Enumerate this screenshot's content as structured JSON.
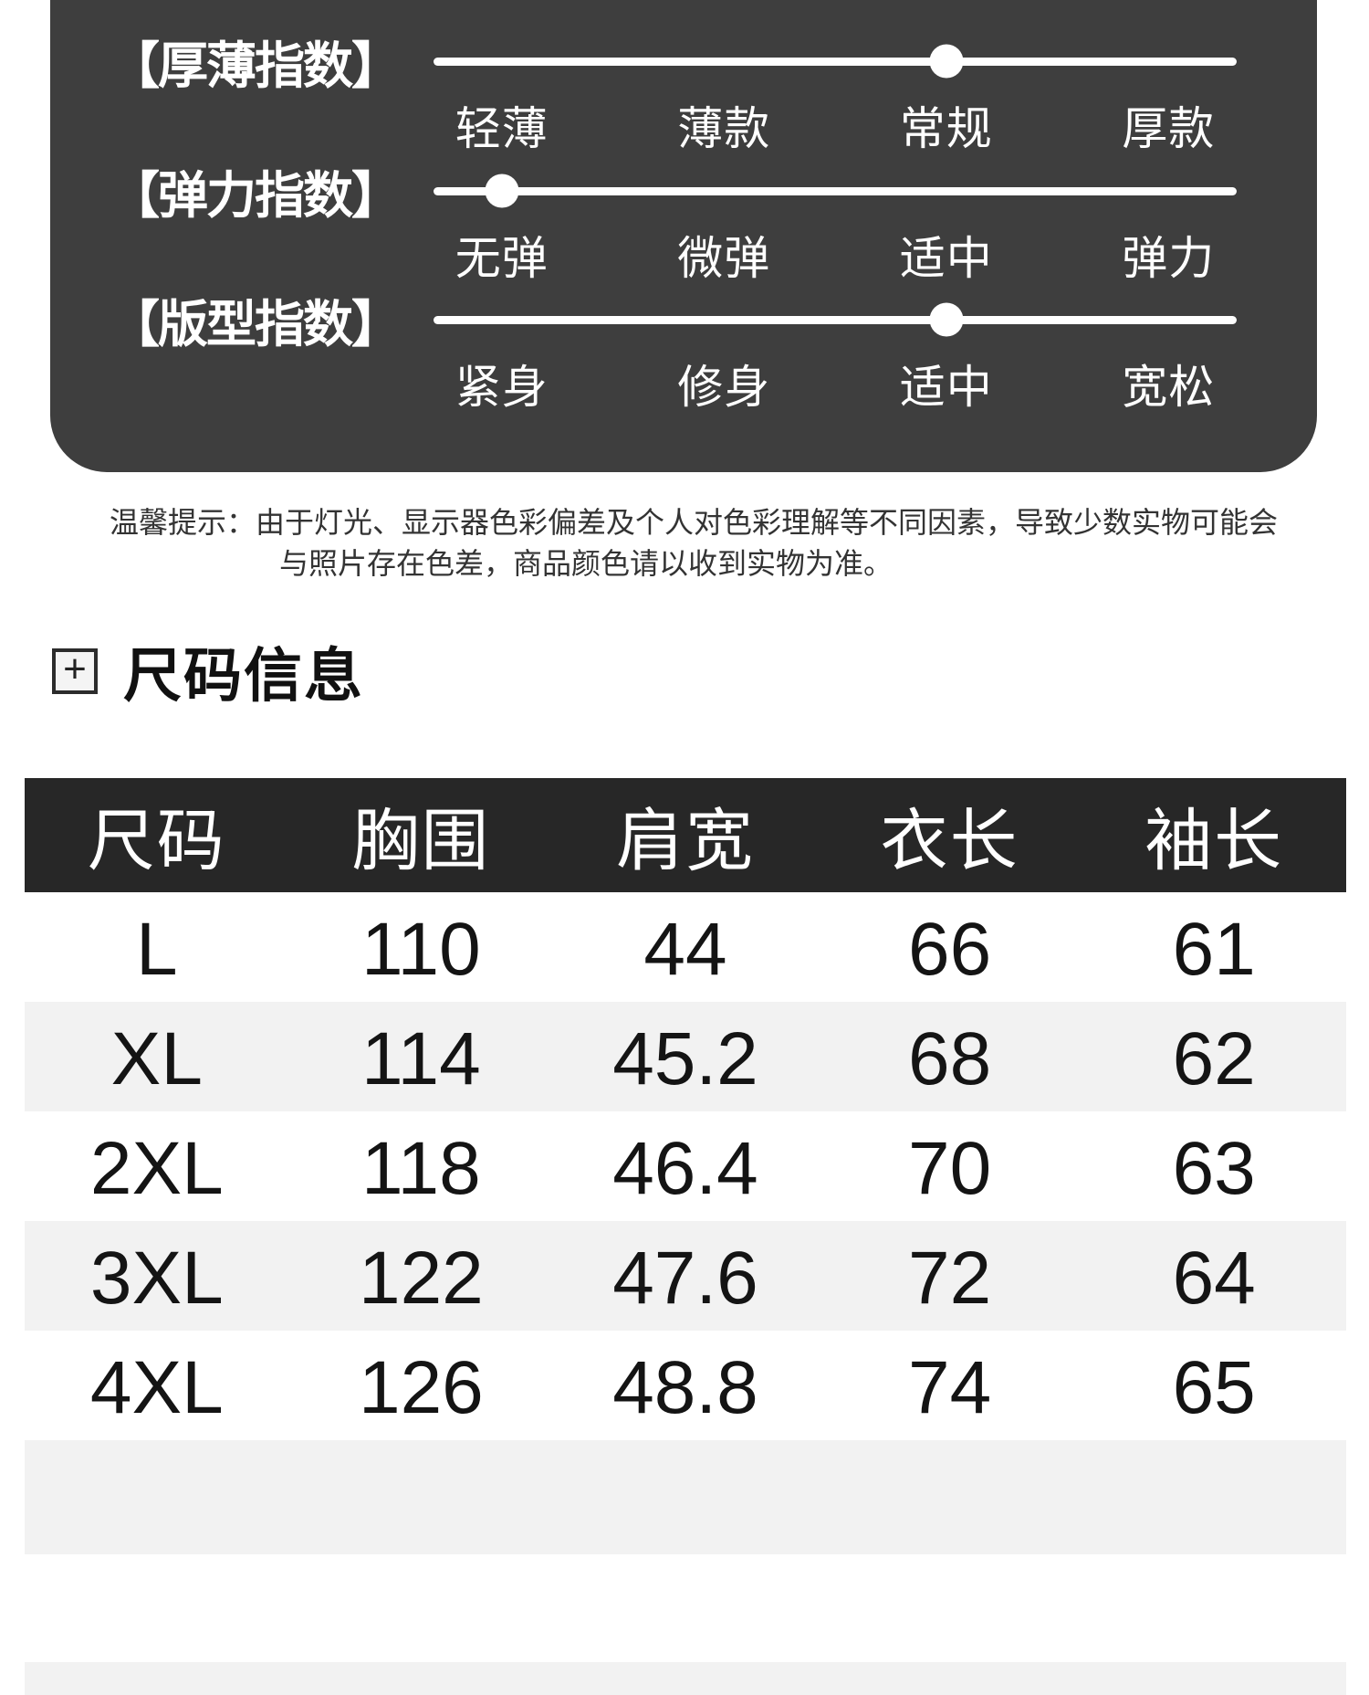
{
  "index_panel": {
    "rows": [
      {
        "label": "【厚薄指数】",
        "options": [
          "轻薄",
          "薄款",
          "常规",
          "厚款"
        ],
        "selected": "常规",
        "selected_index": 2
      },
      {
        "label": "【弹力指数】",
        "options": [
          "无弹",
          "微弹",
          "适中",
          "弹力"
        ],
        "selected": "无弹",
        "selected_index": 0
      },
      {
        "label": "【版型指数】",
        "options": [
          "紧身",
          "修身",
          "适中",
          "宽松"
        ],
        "selected": "适中",
        "selected_index": 2
      }
    ]
  },
  "notice": {
    "line1": "温馨提示：由于灯光、显示器色彩偏差及个人对色彩理解等不同因素，导致少数实物可能会",
    "line2": "与照片存在色差，商品颜色请以收到实物为准。"
  },
  "size_section": {
    "icon": "plus-box-icon",
    "plus_glyph": "+",
    "title": "尺码信息"
  },
  "size_table": {
    "columns": [
      "尺码",
      "胸围",
      "肩宽",
      "衣长",
      "袖长"
    ],
    "rows": [
      [
        "L",
        "110",
        "44",
        "66",
        "61"
      ],
      [
        "XL",
        "114",
        "45.2",
        "68",
        "62"
      ],
      [
        "2XL",
        "118",
        "46.4",
        "70",
        "63"
      ],
      [
        "3XL",
        "122",
        "47.6",
        "72",
        "64"
      ],
      [
        "4XL",
        "126",
        "48.8",
        "74",
        "65"
      ]
    ]
  },
  "colors": {
    "panel_bg": "#3e3e3e",
    "table_header_bg": "#272727",
    "row_alt_bg": "#f2f2f2",
    "slider_track": "#ffffff",
    "text_dark": "#141414",
    "notice_text": "#333333"
  }
}
